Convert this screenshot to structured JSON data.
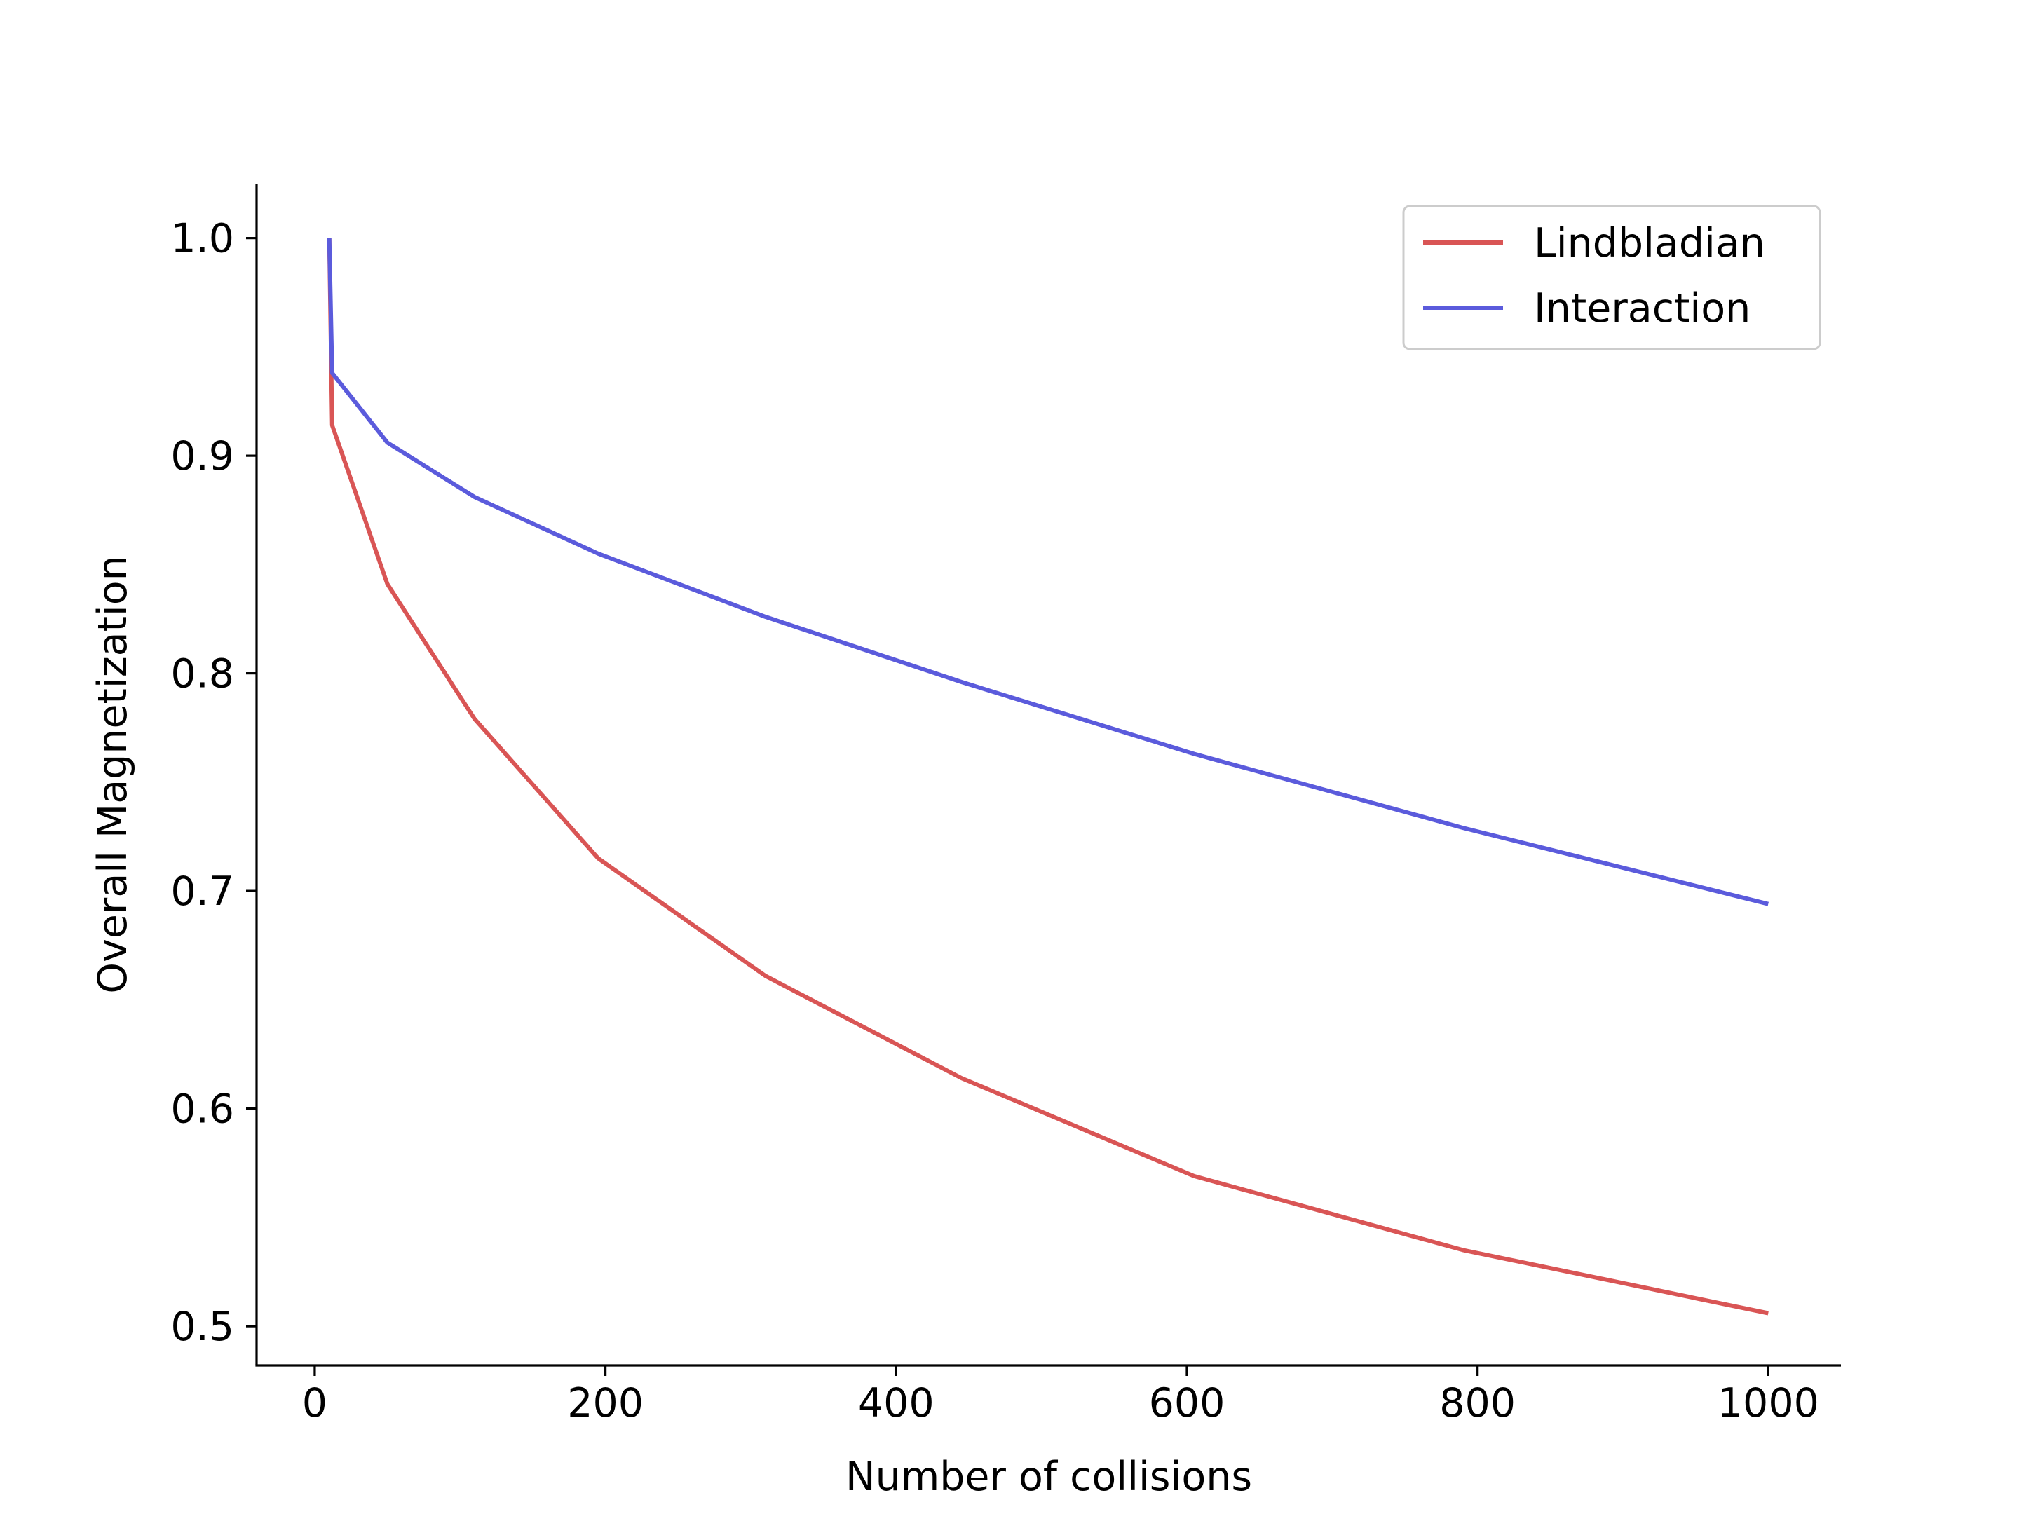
{
  "chart_data": {
    "type": "line",
    "title": "",
    "xlabel": "Number of collisions",
    "ylabel": "Overall Magnetization",
    "xlim": [
      -40,
      1050
    ],
    "ylim": [
      0.482,
      1.025
    ],
    "x_ticks": [
      0,
      200,
      400,
      600,
      800,
      1000
    ],
    "x_tick_labels": [
      "0",
      "200",
      "400",
      "600",
      "800",
      "1000"
    ],
    "y_ticks": [
      0.5,
      0.6,
      0.7,
      0.8,
      0.9,
      1.0
    ],
    "y_tick_labels": [
      "0.5",
      "0.6",
      "0.7",
      "0.8",
      "0.9",
      "1.0"
    ],
    "grid": false,
    "legend_position": "top-right",
    "series": [
      {
        "name": "Lindbladian",
        "color": "#d95555",
        "x": [
          10,
          12,
          50,
          110,
          195,
          310,
          445,
          605,
          790,
          1000
        ],
        "y": [
          1.0,
          0.914,
          0.841,
          0.779,
          0.715,
          0.661,
          0.614,
          0.569,
          0.535,
          0.506
        ]
      },
      {
        "name": "Interaction",
        "color": "#5b5bdc",
        "x": [
          10,
          12,
          50,
          110,
          195,
          310,
          445,
          605,
          790,
          1000
        ],
        "y": [
          1.0,
          0.938,
          0.906,
          0.881,
          0.855,
          0.826,
          0.796,
          0.763,
          0.729,
          0.694
        ]
      }
    ]
  }
}
